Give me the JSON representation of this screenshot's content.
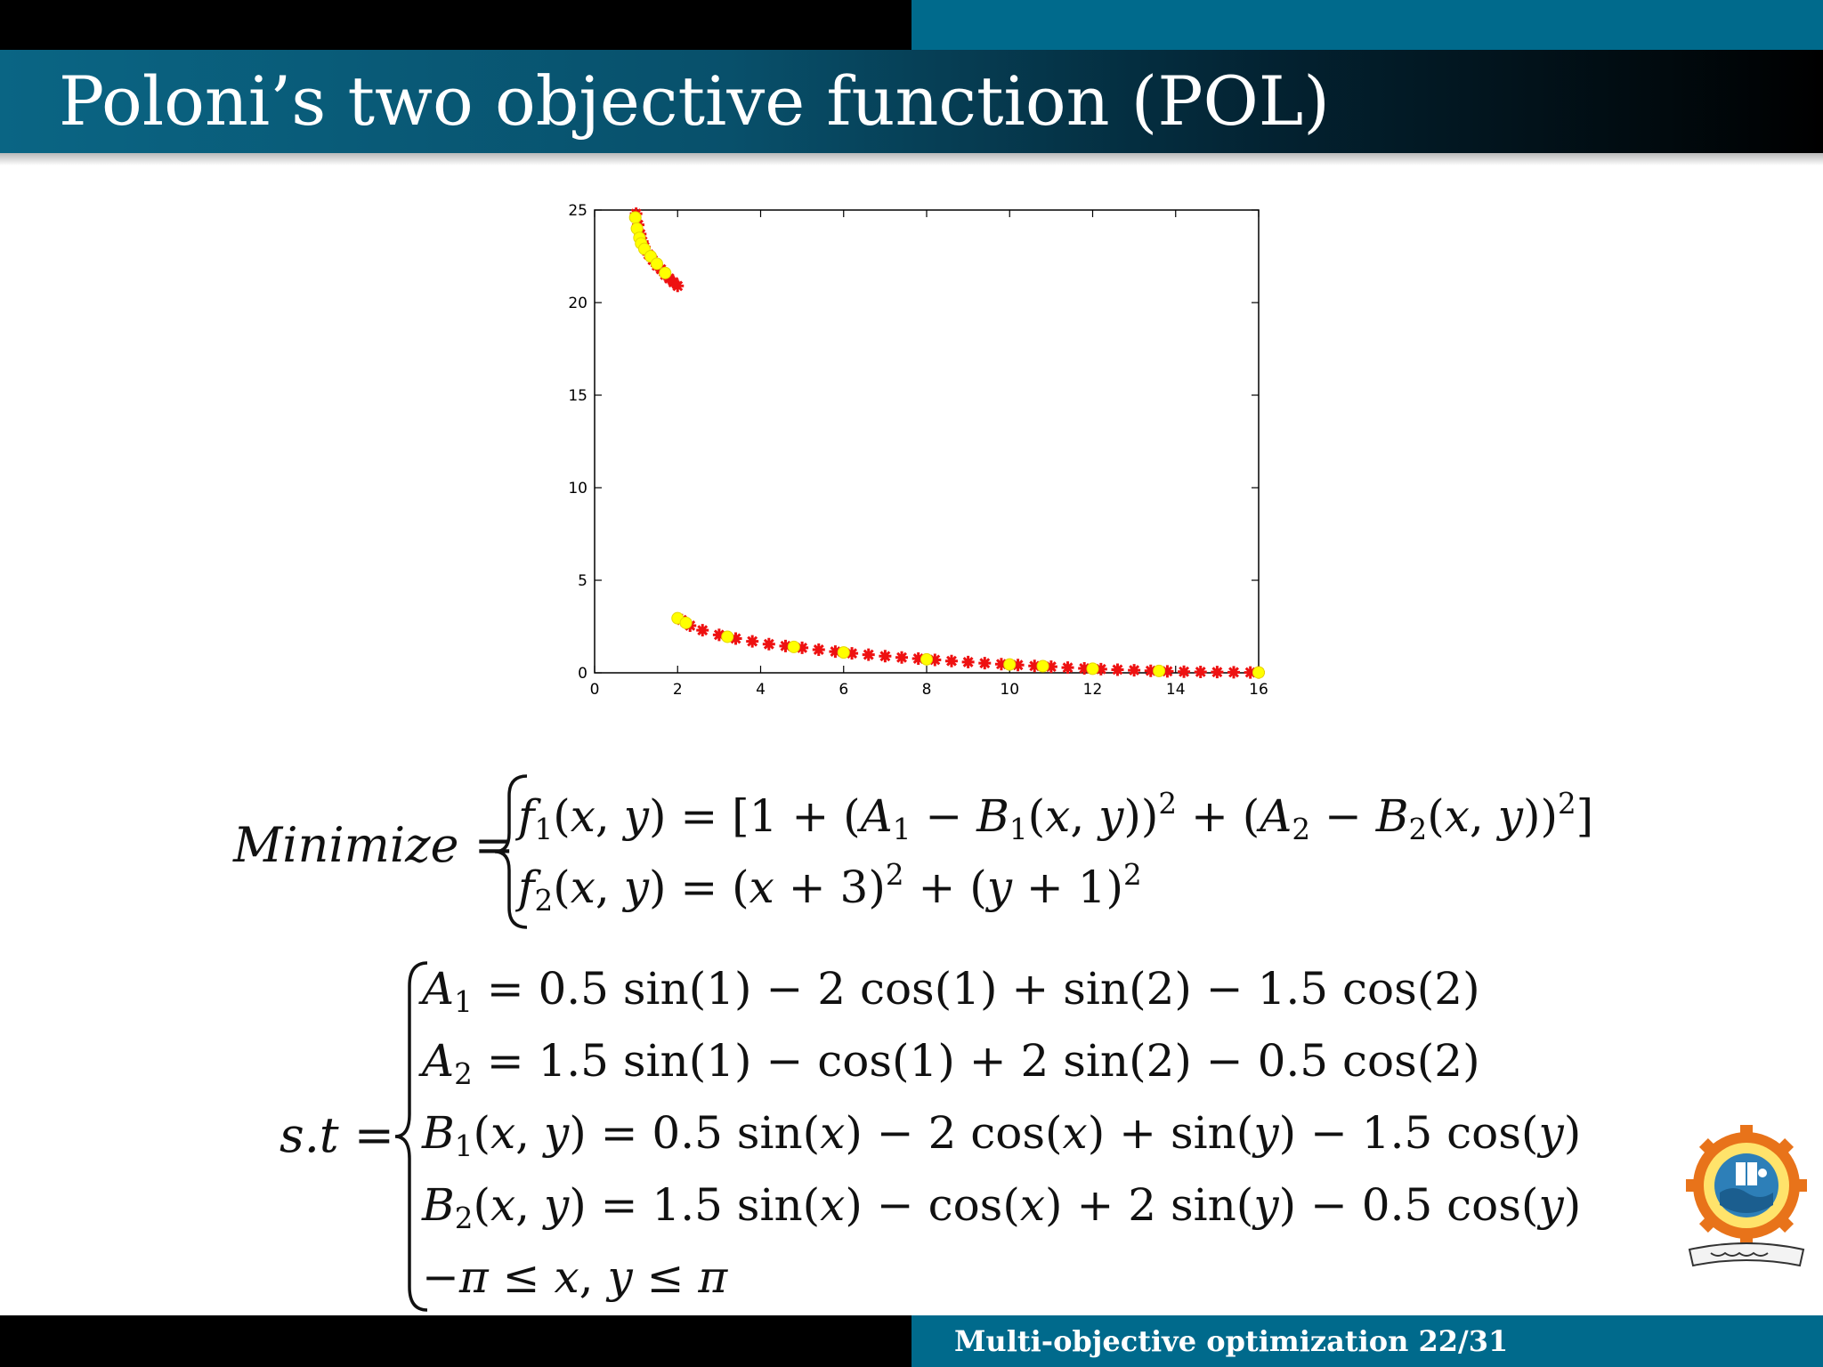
{
  "slide": {
    "title": "Poloni’s two objective function (POL)",
    "footer_title": "Multi-objective optimization",
    "footer_page": "22/31"
  },
  "equations": {
    "minimize_label": "Minimize =",
    "st_label": "s.t ="
  },
  "colors": {
    "header_teal": "#006a8c",
    "marker_red": "#ee1111",
    "marker_yellow": "#ffff00"
  },
  "chart_data": {
    "type": "scatter",
    "title": "",
    "xlabel": "",
    "ylabel": "",
    "xlim": [
      0,
      16
    ],
    "ylim": [
      0,
      25
    ],
    "xticks": [
      0,
      2,
      4,
      6,
      8,
      10,
      12,
      14,
      16
    ],
    "yticks": [
      0,
      5,
      10,
      15,
      20,
      25
    ],
    "grid": false,
    "series": [
      {
        "marker": "star",
        "color": "#ee1111",
        "points": [
          [
            1.0,
            24.8
          ],
          [
            1.05,
            24.2
          ],
          [
            1.1,
            23.7
          ],
          [
            1.15,
            23.3
          ],
          [
            1.2,
            23.0
          ],
          [
            1.3,
            22.6
          ],
          [
            1.4,
            22.3
          ],
          [
            1.5,
            22.0
          ],
          [
            1.6,
            21.8
          ],
          [
            1.7,
            21.5
          ],
          [
            1.8,
            21.3
          ],
          [
            1.9,
            21.1
          ],
          [
            2.0,
            20.9
          ],
          [
            2.1,
            2.85
          ],
          [
            2.3,
            2.55
          ],
          [
            2.6,
            2.3
          ],
          [
            3.0,
            2.05
          ],
          [
            3.4,
            1.85
          ],
          [
            3.8,
            1.7
          ],
          [
            4.2,
            1.55
          ],
          [
            4.6,
            1.45
          ],
          [
            5.0,
            1.35
          ],
          [
            5.4,
            1.25
          ],
          [
            5.8,
            1.15
          ],
          [
            6.2,
            1.05
          ],
          [
            6.6,
            0.98
          ],
          [
            7.0,
            0.9
          ],
          [
            7.4,
            0.83
          ],
          [
            7.8,
            0.77
          ],
          [
            8.2,
            0.7
          ],
          [
            8.6,
            0.64
          ],
          [
            9.0,
            0.58
          ],
          [
            9.4,
            0.52
          ],
          [
            9.8,
            0.47
          ],
          [
            10.2,
            0.42
          ],
          [
            10.6,
            0.37
          ],
          [
            11.0,
            0.33
          ],
          [
            11.4,
            0.28
          ],
          [
            11.8,
            0.24
          ],
          [
            12.2,
            0.2
          ],
          [
            12.6,
            0.17
          ],
          [
            13.0,
            0.14
          ],
          [
            13.4,
            0.11
          ],
          [
            13.8,
            0.08
          ],
          [
            14.2,
            0.06
          ],
          [
            14.6,
            0.05
          ],
          [
            15.0,
            0.04
          ],
          [
            15.4,
            0.03
          ],
          [
            15.8,
            0.02
          ],
          [
            16.0,
            0.02
          ]
        ]
      },
      {
        "marker": "circle",
        "color": "#ffff00",
        "points": [
          [
            0.98,
            24.6
          ],
          [
            1.02,
            24.0
          ],
          [
            1.08,
            23.5
          ],
          [
            1.12,
            23.2
          ],
          [
            1.2,
            22.9
          ],
          [
            1.35,
            22.5
          ],
          [
            1.5,
            22.1
          ],
          [
            1.7,
            21.6
          ],
          [
            2.0,
            2.95
          ],
          [
            2.2,
            2.7
          ],
          [
            3.2,
            1.95
          ],
          [
            4.8,
            1.4
          ],
          [
            6.0,
            1.1
          ],
          [
            8.0,
            0.73
          ],
          [
            10.0,
            0.45
          ],
          [
            10.8,
            0.36
          ],
          [
            12.0,
            0.22
          ],
          [
            13.6,
            0.1
          ],
          [
            16.0,
            0.02
          ]
        ]
      }
    ]
  }
}
